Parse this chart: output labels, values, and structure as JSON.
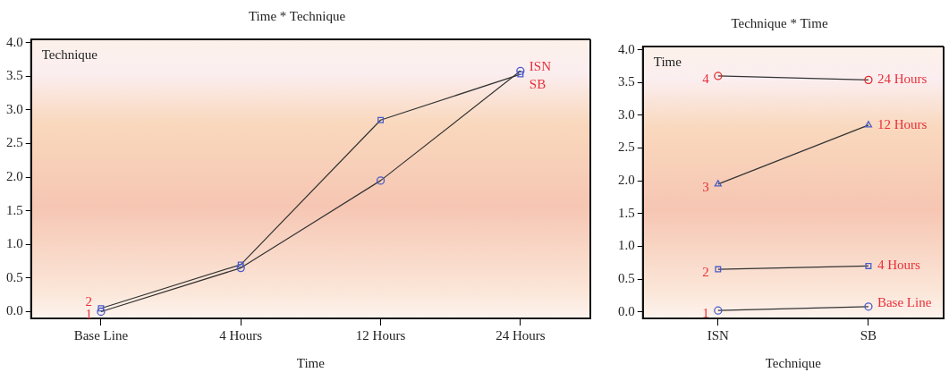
{
  "chart_data": [
    {
      "type": "line",
      "title": "Time * Technique",
      "xlabel": "Time",
      "legend_title": "Technique",
      "categories": [
        "Base Line",
        "4 Hours",
        "12 Hours",
        "24 Hours"
      ],
      "series": [
        {
          "name": "ISN",
          "color": "#4a5cc8",
          "marker": "circle",
          "values": [
            0.0,
            0.65,
            1.95,
            3.58
          ]
        },
        {
          "name": "SB",
          "color": "#4a5cc8",
          "marker": "square",
          "values": [
            0.05,
            0.7,
            2.85,
            3.53
          ]
        }
      ],
      "ylim": [
        -0.1,
        4.05
      ],
      "yticks": [
        {
          "value": 0,
          "label": "0.0"
        },
        {
          "value": 0.5,
          "label": "0.5"
        },
        {
          "value": 1,
          "label": "1.0"
        },
        {
          "value": 1.5,
          "label": "1.5"
        },
        {
          "value": 2,
          "label": "2.0"
        },
        {
          "value": 2.5,
          "label": "2.5"
        },
        {
          "value": 3,
          "label": "3.0"
        },
        {
          "value": 3.5,
          "label": "3.5"
        },
        {
          "value": 4,
          "label": "4.0"
        }
      ],
      "annotations": [
        {
          "text": "1",
          "x": "Base Line",
          "y": 0.0
        },
        {
          "text": "2",
          "x": "Base Line",
          "y": 0.05
        }
      ],
      "grid": false
    },
    {
      "type": "line",
      "title": "Technique * Time",
      "xlabel": "Technique",
      "legend_title": "Time",
      "categories": [
        "ISN",
        "SB"
      ],
      "series": [
        {
          "name": "Base Line",
          "color": "#4a5cc8",
          "marker": "circle",
          "values": [
            0.02,
            0.08
          ]
        },
        {
          "name": "4 Hours",
          "color": "#4a5cc8",
          "marker": "square",
          "values": [
            0.65,
            0.7
          ]
        },
        {
          "name": "12 Hours",
          "color": "#4a5cc8",
          "marker": "triangle",
          "values": [
            1.95,
            2.85
          ]
        },
        {
          "name": "24 Hours",
          "color": "#e02828",
          "marker": "circle",
          "values": [
            3.6,
            3.54
          ]
        }
      ],
      "ylim": [
        -0.1,
        4.05
      ],
      "yticks": [
        {
          "value": 0,
          "label": "0.0"
        },
        {
          "value": 0.5,
          "label": "0.5"
        },
        {
          "value": 1,
          "label": "1.0"
        },
        {
          "value": 1.5,
          "label": "1.5"
        },
        {
          "value": 2,
          "label": "2.0"
        },
        {
          "value": 2.5,
          "label": "2.5"
        },
        {
          "value": 3,
          "label": "3.0"
        },
        {
          "value": 3.5,
          "label": "3.5"
        },
        {
          "value": 4,
          "label": "4.0"
        }
      ],
      "annotations": [
        {
          "text": "1",
          "x": "ISN",
          "y": 0.02
        },
        {
          "text": "2",
          "x": "ISN",
          "y": 0.65
        },
        {
          "text": "3",
          "x": "ISN",
          "y": 1.95
        },
        {
          "text": "4",
          "x": "ISN",
          "y": 3.6
        }
      ],
      "grid": false
    }
  ]
}
